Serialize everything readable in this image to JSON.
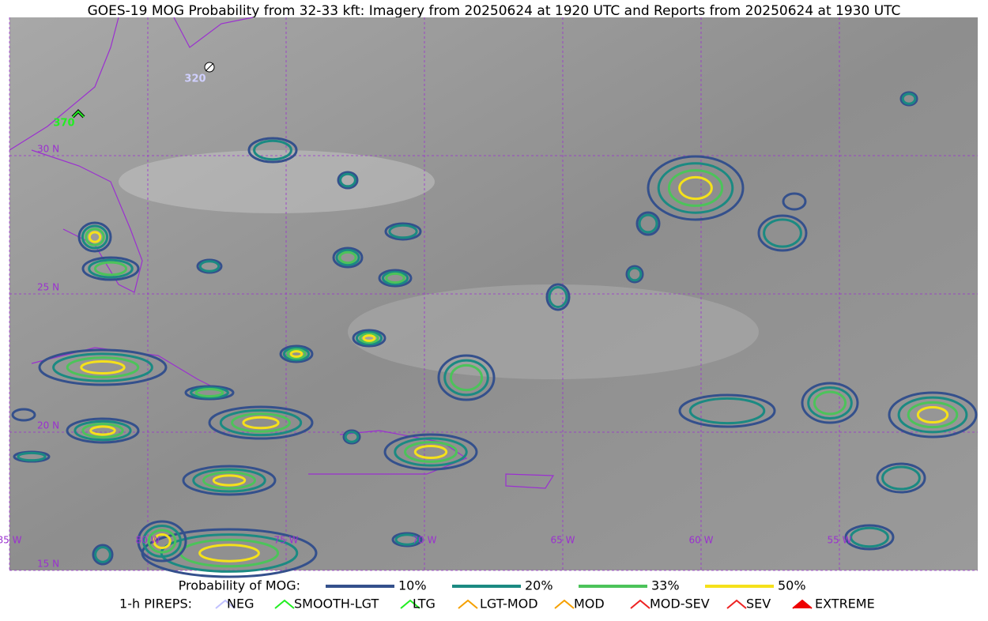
{
  "title": "GOES-19 MOG Probability from 32-33 kft: Imagery from 20250624 at 1920 UTC and Reports from 20250624 at 1930 UTC",
  "map": {
    "latitude_labels": [
      "30 N",
      "25 N",
      "20 N",
      "15 N"
    ],
    "longitude_labels": [
      "85 W",
      "80 W",
      "75 W",
      "70 W",
      "65 W",
      "60 W",
      "55 W"
    ],
    "reports": [
      {
        "label": "320"
      },
      {
        "label": "370"
      }
    ]
  },
  "legend": {
    "probability_title": "Probability of MOG:",
    "probability_levels": [
      "10%",
      "20%",
      "33%",
      "50%"
    ],
    "pireps_title": "1-h PIREPS:",
    "pireps": [
      "NEG",
      "SMOOTH-LGT",
      "LTG",
      "LGT-MOD",
      "MOD",
      "MOD-SEV",
      "SEV",
      "EXTREME"
    ]
  }
}
